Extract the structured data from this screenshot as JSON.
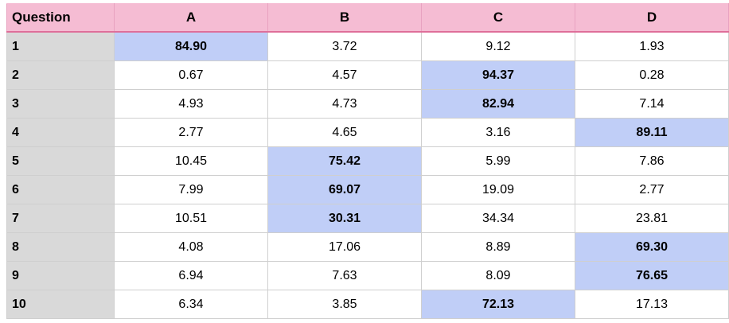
{
  "table": {
    "headers": [
      "Question",
      "A",
      "B",
      "C",
      "D"
    ],
    "rows": [
      {
        "question": "1",
        "values": [
          "84.90",
          "3.72",
          "9.12",
          "1.93"
        ],
        "highlight": 0
      },
      {
        "question": "2",
        "values": [
          "0.67",
          "4.57",
          "94.37",
          "0.28"
        ],
        "highlight": 2
      },
      {
        "question": "3",
        "values": [
          "4.93",
          "4.73",
          "82.94",
          "7.14"
        ],
        "highlight": 2
      },
      {
        "question": "4",
        "values": [
          "2.77",
          "4.65",
          "3.16",
          "89.11"
        ],
        "highlight": 3
      },
      {
        "question": "5",
        "values": [
          "10.45",
          "75.42",
          "5.99",
          "7.86"
        ],
        "highlight": 1
      },
      {
        "question": "6",
        "values": [
          "7.99",
          "69.07",
          "19.09",
          "2.77"
        ],
        "highlight": 1
      },
      {
        "question": "7",
        "values": [
          "10.51",
          "30.31",
          "34.34",
          "23.81"
        ],
        "highlight": 1
      },
      {
        "question": "8",
        "values": [
          "4.08",
          "17.06",
          "8.89",
          "69.30"
        ],
        "highlight": 3
      },
      {
        "question": "9",
        "values": [
          "6.94",
          "7.63",
          "8.09",
          "76.65"
        ],
        "highlight": 3
      },
      {
        "question": "10",
        "values": [
          "6.34",
          "3.85",
          "72.13",
          "17.13"
        ],
        "highlight": 2
      }
    ]
  },
  "colors": {
    "header_bg": "#f5bcd3",
    "header_rule": "#df6f9a",
    "question_col_bg": "#d9d9d9",
    "highlight_bg": "#c0cef7"
  }
}
